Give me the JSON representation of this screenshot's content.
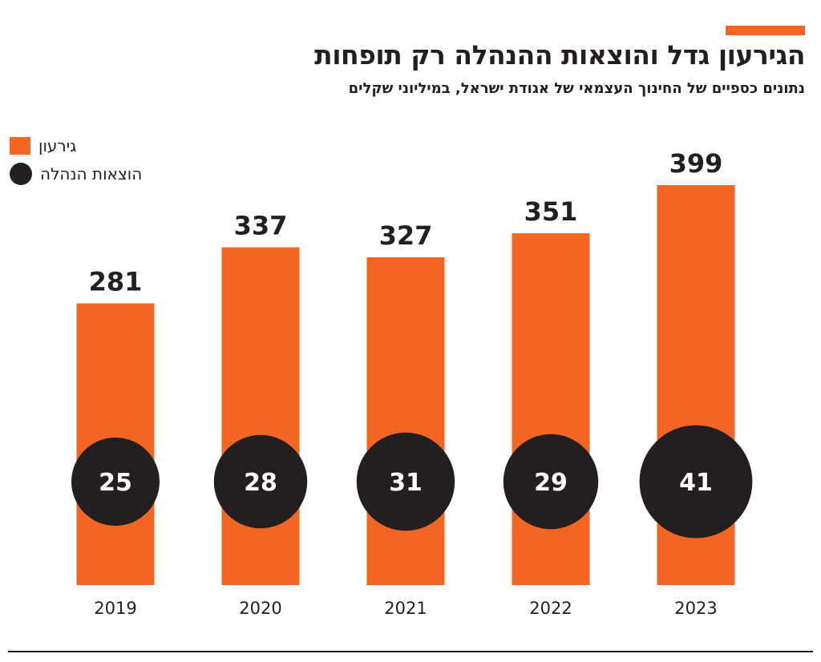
{
  "header": {
    "title": "הגירעון גדל והוצאות ההנהלה רק תופחות",
    "subtitle": "נתונים כספיים של החינוך העצמאי של אגודת ישראל, במיליוני שקלים"
  },
  "legend": {
    "deficit_label": "גירעון",
    "expenses_label": "הוצאות הנהלה"
  },
  "colors": {
    "accent": "#f26522",
    "dark": "#231f20"
  },
  "chart_data": {
    "type": "bar",
    "title": "הגירעון גדל והוצאות ההנהלה רק תופחות",
    "subtitle": "נתונים כספיים של החינוך העצמאי של אגודת ישראל, במיליוני שקלים",
    "categories": [
      "2019",
      "2020",
      "2021",
      "2022",
      "2023"
    ],
    "series": [
      {
        "name": "גירעון",
        "values": [
          281,
          337,
          327,
          351,
          399
        ],
        "mark": "bar",
        "color": "#f26522"
      },
      {
        "name": "הוצאות הנהלה",
        "values": [
          25,
          28,
          31,
          29,
          41
        ],
        "mark": "circle",
        "color": "#231f20"
      }
    ],
    "ylim": [
      0,
      399
    ],
    "grid": false,
    "legend_position": "top-left"
  }
}
